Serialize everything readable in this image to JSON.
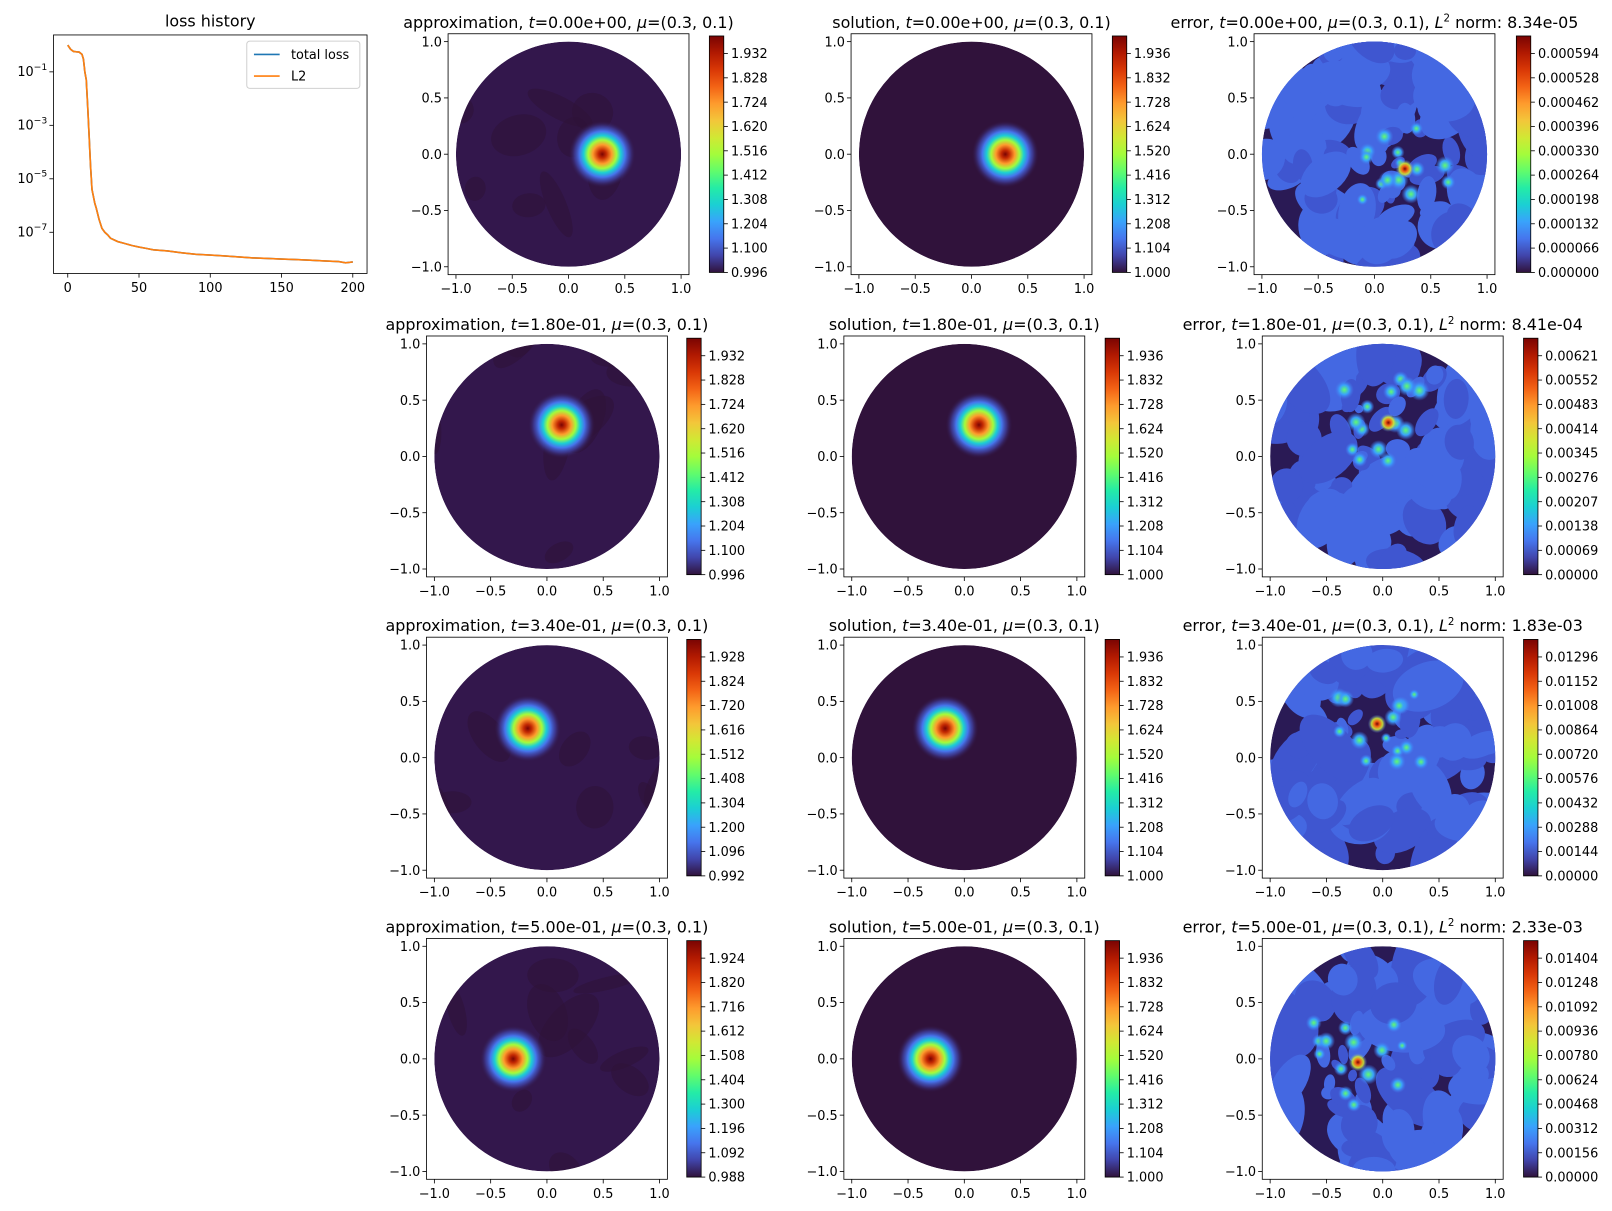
{
  "chart_data": [
    {
      "type": "line",
      "title": "loss history",
      "xlabel": "",
      "ylabel": "",
      "yscale": "log",
      "xlim": [
        -10,
        210
      ],
      "ylim_decades": [
        -8.54,
        0.38
      ],
      "xticks": [
        "0",
        "50",
        "100",
        "150",
        "200"
      ],
      "xtick_values": [
        0,
        50,
        100,
        150,
        200
      ],
      "yticks": [
        "10",
        "10",
        "10",
        "10"
      ],
      "ytick_exponents": [
        "−1",
        "−3",
        "−5",
        "−7"
      ],
      "ytick_values": [
        -1,
        -3,
        -5,
        -7
      ],
      "legend": {
        "placement": "top-right",
        "entries": [
          "total loss",
          "L2"
        ]
      },
      "x": [
        0,
        2,
        4,
        6,
        8,
        10,
        11,
        12,
        13,
        14,
        15,
        16,
        17,
        18,
        19,
        20,
        22,
        24,
        26,
        28,
        30,
        35,
        40,
        45,
        50,
        55,
        60,
        70,
        80,
        90,
        100,
        110,
        120,
        130,
        140,
        150,
        160,
        170,
        180,
        190,
        195,
        200
      ],
      "series": [
        {
          "name": "total loss",
          "color": "#1f77b4",
          "values": [
            1.0,
            0.7,
            0.58,
            0.56,
            0.55,
            0.45,
            0.3,
            0.1,
            0.05,
            0.005,
            0.0004,
            3e-05,
            4e-06,
            2.2e-06,
            1.2e-06,
            8e-07,
            3e-07,
            1.4e-07,
            1e-07,
            8e-08,
            6e-08,
            4.5e-08,
            3.8e-08,
            3.2e-08,
            2.8e-08,
            2.5e-08,
            2.2e-08,
            2e-08,
            1.7e-08,
            1.5e-08,
            1.4e-08,
            1.3e-08,
            1.2e-08,
            1.1e-08,
            1.05e-08,
            1e-08,
            9.5e-09,
            9e-09,
            8.5e-09,
            8e-09,
            7.2e-09,
            7.8e-09
          ]
        },
        {
          "name": "L2",
          "color": "#ff7f0e",
          "values": [
            1.0,
            0.7,
            0.58,
            0.56,
            0.55,
            0.45,
            0.3,
            0.1,
            0.05,
            0.005,
            0.0004,
            3e-05,
            4e-06,
            2.2e-06,
            1.2e-06,
            8e-07,
            3e-07,
            1.4e-07,
            1e-07,
            8e-08,
            6e-08,
            4.5e-08,
            3.8e-08,
            3.2e-08,
            2.8e-08,
            2.5e-08,
            2.2e-08,
            2e-08,
            1.7e-08,
            1.5e-08,
            1.4e-08,
            1.3e-08,
            1.2e-08,
            1.1e-08,
            1.05e-08,
            1e-08,
            9.5e-09,
            9e-09,
            8.5e-09,
            8e-09,
            7.2e-09,
            7.8e-09
          ]
        }
      ]
    },
    {
      "type": "heatmap",
      "colormap": "turbo",
      "axis_ticks": [
        "−1.0",
        "−0.5",
        "0.0",
        "0.5",
        "1.0"
      ],
      "axis_tick_values": [
        -1,
        -0.5,
        0,
        0.5,
        1
      ],
      "panels": [
        {
          "row": 0,
          "col": 0,
          "kind": "approximation",
          "label": "approximation",
          "t": "0.00e+00",
          "mu": "(0.3, 0.1)",
          "peak": [
            0.3,
            0.0
          ],
          "colorbar_ticks": [
            "0.996",
            "1.100",
            "1.204",
            "1.308",
            "1.412",
            "1.516",
            "1.620",
            "1.724",
            "1.828",
            "1.932"
          ]
        },
        {
          "row": 0,
          "col": 1,
          "kind": "solution",
          "label": "solution",
          "t": "0.00e+00",
          "mu": "(0.3, 0.1)",
          "peak": [
            0.3,
            0.0
          ],
          "colorbar_ticks": [
            "1.000",
            "1.104",
            "1.208",
            "1.312",
            "1.416",
            "1.520",
            "1.624",
            "1.728",
            "1.832",
            "1.936"
          ]
        },
        {
          "row": 0,
          "col": 2,
          "kind": "error",
          "label": "error",
          "t": "0.00e+00",
          "mu": "(0.3, 0.1)",
          "norm_label": "norm:",
          "norm": "8.34e-05",
          "peak": [
            0.27,
            -0.13
          ],
          "colorbar_ticks": [
            "0.000000",
            "0.000066",
            "0.000132",
            "0.000198",
            "0.000264",
            "0.000330",
            "0.000396",
            "0.000462",
            "0.000528",
            "0.000594"
          ]
        },
        {
          "row": 1,
          "col": 0,
          "kind": "approximation",
          "label": "approximation",
          "t": "1.80e-01",
          "mu": "(0.3, 0.1)",
          "peak": [
            0.13,
            0.28
          ],
          "colorbar_ticks": [
            "0.996",
            "1.100",
            "1.204",
            "1.308",
            "1.412",
            "1.516",
            "1.620",
            "1.724",
            "1.828",
            "1.932"
          ]
        },
        {
          "row": 1,
          "col": 1,
          "kind": "solution",
          "label": "solution",
          "t": "1.80e-01",
          "mu": "(0.3, 0.1)",
          "peak": [
            0.13,
            0.28
          ],
          "colorbar_ticks": [
            "1.000",
            "1.104",
            "1.208",
            "1.312",
            "1.416",
            "1.520",
            "1.624",
            "1.728",
            "1.832",
            "1.936"
          ]
        },
        {
          "row": 1,
          "col": 2,
          "kind": "error",
          "label": "error",
          "t": "1.80e-01",
          "mu": "(0.3, 0.1)",
          "norm_label": "norm:",
          "norm": "8.41e-04",
          "peak": [
            0.05,
            0.3
          ],
          "colorbar_ticks": [
            "0.00000",
            "0.00069",
            "0.00138",
            "0.00207",
            "0.00276",
            "0.00345",
            "0.00414",
            "0.00483",
            "0.00552",
            "0.00621"
          ]
        },
        {
          "row": 2,
          "col": 0,
          "kind": "approximation",
          "label": "approximation",
          "t": "3.40e-01",
          "mu": "(0.3, 0.1)",
          "peak": [
            -0.17,
            0.26
          ],
          "colorbar_ticks": [
            "0.992",
            "1.096",
            "1.200",
            "1.304",
            "1.408",
            "1.512",
            "1.616",
            "1.720",
            "1.824",
            "1.928"
          ]
        },
        {
          "row": 2,
          "col": 1,
          "kind": "solution",
          "label": "solution",
          "t": "3.40e-01",
          "mu": "(0.3, 0.1)",
          "peak": [
            -0.17,
            0.26
          ],
          "colorbar_ticks": [
            "1.000",
            "1.104",
            "1.208",
            "1.312",
            "1.416",
            "1.520",
            "1.624",
            "1.728",
            "1.832",
            "1.936"
          ]
        },
        {
          "row": 2,
          "col": 2,
          "kind": "error",
          "label": "error",
          "t": "3.40e-01",
          "mu": "(0.3, 0.1)",
          "norm_label": "norm:",
          "norm": "1.83e-03",
          "peak": [
            -0.05,
            0.3
          ],
          "colorbar_ticks": [
            "0.00000",
            "0.00144",
            "0.00288",
            "0.00432",
            "0.00576",
            "0.00720",
            "0.00864",
            "0.01008",
            "0.01152",
            "0.01296"
          ]
        },
        {
          "row": 3,
          "col": 0,
          "kind": "approximation",
          "label": "approximation",
          "t": "5.00e-01",
          "mu": "(0.3, 0.1)",
          "peak": [
            -0.3,
            0.0
          ],
          "colorbar_ticks": [
            "0.988",
            "1.092",
            "1.196",
            "1.300",
            "1.404",
            "1.508",
            "1.612",
            "1.716",
            "1.820",
            "1.924"
          ]
        },
        {
          "row": 3,
          "col": 1,
          "kind": "solution",
          "label": "solution",
          "t": "5.00e-01",
          "mu": "(0.3, 0.1)",
          "peak": [
            -0.3,
            0.0
          ],
          "colorbar_ticks": [
            "1.000",
            "1.104",
            "1.208",
            "1.312",
            "1.416",
            "1.520",
            "1.624",
            "1.728",
            "1.832",
            "1.936"
          ]
        },
        {
          "row": 3,
          "col": 2,
          "kind": "error",
          "label": "error",
          "t": "5.00e-01",
          "mu": "(0.3, 0.1)",
          "norm_label": "norm:",
          "norm": "2.33e-03",
          "peak": [
            -0.22,
            -0.03
          ],
          "colorbar_ticks": [
            "0.00000",
            "0.00156",
            "0.00312",
            "0.00468",
            "0.00624",
            "0.00780",
            "0.00936",
            "0.01092",
            "0.01248",
            "0.01404"
          ]
        }
      ]
    }
  ]
}
